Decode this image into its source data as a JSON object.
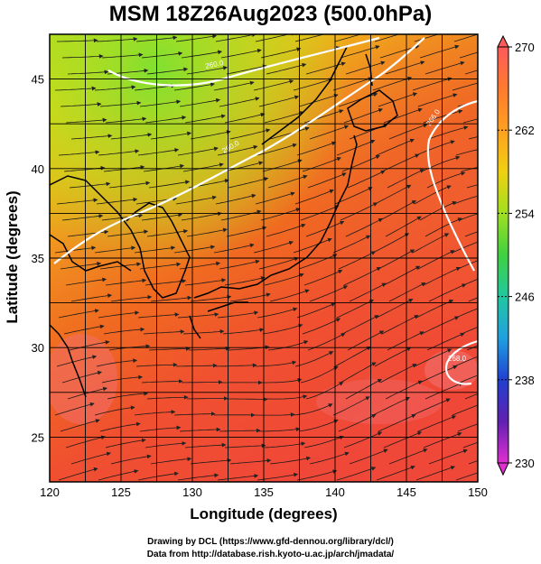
{
  "title": "MSM 18Z26Aug2023 (500.0hPa)",
  "x_axis": {
    "label": "Longitude (degrees)",
    "ticks": [
      "120",
      "125",
      "130",
      "135",
      "140",
      "145",
      "150"
    ]
  },
  "y_axis": {
    "label": "Latitude  (degrees)",
    "ticks": [
      "25",
      "30",
      "35",
      "40",
      "45"
    ]
  },
  "colorbar": {
    "ticks": [
      "270",
      "262",
      "254",
      "246",
      "238",
      "230"
    ],
    "colors": [
      "#e8e8e8",
      "#ff5a5a",
      "#ff7a30",
      "#ffa020",
      "#f0d010",
      "#a0e020",
      "#40d040",
      "#20c8a0",
      "#20a0e0",
      "#2040d0",
      "#6020b0",
      "#c020c0"
    ]
  },
  "contours": [
    {
      "label": "260.0"
    },
    {
      "label": "260.0"
    },
    {
      "label": "266.0"
    },
    {
      "label": "268.0"
    }
  ],
  "credits": {
    "line1": "Drawing by DCL (https://www.gfd-dennou.org/library/dcl/)",
    "line2": "Data from http://database.rish.kyoto-u.ac.jp/arch/jmadata/"
  },
  "map": {
    "extent": {
      "lon": [
        120,
        150
      ],
      "lat": [
        22.5,
        47.5
      ]
    },
    "features": "temperature-field, wind-streamlines, coastlines, grid"
  }
}
